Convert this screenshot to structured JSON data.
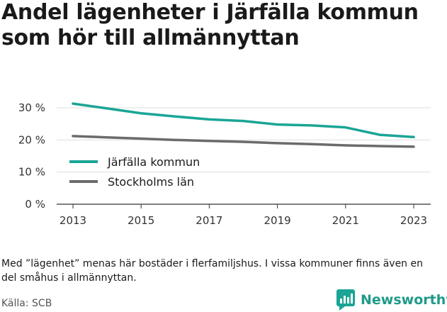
{
  "title": "Andel lägenheter i Järfälla kommun som hör till allmännyttan",
  "note": "Med ”lägenhet” menas här bostäder i flerfamiljshus. I vissa kommuner finns även en del småhus i allmännyttan.",
  "source": "Källa: SCB",
  "brand": {
    "name": "Newsworthy",
    "icon": "newsworthy-logo-icon"
  },
  "colors": {
    "jarfalla": "#1aa596",
    "stockholm": "#6b6b6b",
    "grid": "#dddddd",
    "text": "#1a1a1a"
  },
  "chart_data": {
    "type": "line",
    "x": [
      2013,
      2014,
      2015,
      2016,
      2017,
      2018,
      2019,
      2020,
      2021,
      2022,
      2023
    ],
    "series": [
      {
        "name": "Järfälla kommun",
        "values": [
          31.3,
          29.8,
          28.3,
          27.3,
          26.4,
          25.9,
          24.8,
          24.5,
          23.9,
          21.6,
          20.9
        ]
      },
      {
        "name": "Stockholms län",
        "values": [
          21.2,
          20.8,
          20.4,
          20.0,
          19.7,
          19.4,
          19.0,
          18.7,
          18.3,
          18.1,
          17.9
        ]
      }
    ],
    "xticks": [
      "2013",
      "2015",
      "2017",
      "2019",
      "2021",
      "2023"
    ],
    "yticks": [
      "0 %",
      "10 %",
      "20 %",
      "30 %"
    ],
    "ytick_values": [
      0,
      10,
      20,
      30
    ],
    "ylim": [
      0,
      30
    ],
    "xlim": [
      2013,
      2023
    ],
    "grid": true,
    "legend_position": "left-middle"
  }
}
